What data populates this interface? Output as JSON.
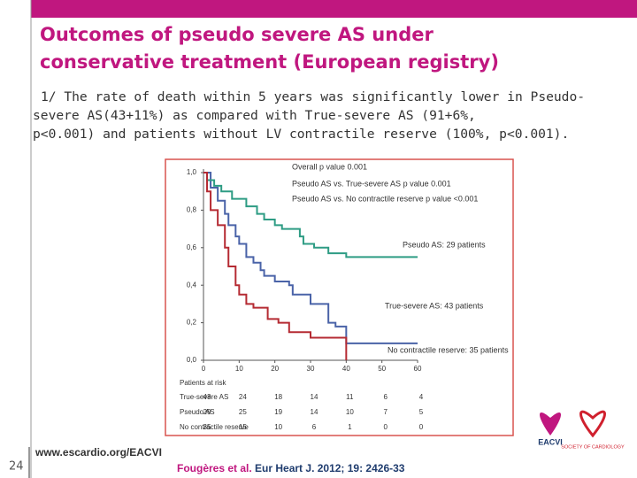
{
  "header": {
    "title_lines": [
      "Outcomes of pseudo severe AS under",
      "conservative treatment (European registry)"
    ]
  },
  "body": {
    "lines": [
      "1/ The rate of death within 5 years was significantly lower in Pseudo-",
      "severe AS(43+11%) as compared with True-severe AS (91+6%,",
      "p<0.001) and patients without LV contractile reserve (100%, p<0.001)."
    ]
  },
  "chart_data": {
    "type": "step",
    "xlim": [
      0,
      60
    ],
    "xticks": [
      0,
      10,
      20,
      30,
      40,
      50,
      60
    ],
    "ylim": [
      0,
      1
    ],
    "yticks": [
      {
        "value": 0,
        "label": "0,0"
      },
      {
        "value": 0.2,
        "label": "0,2"
      },
      {
        "value": 0.4,
        "label": "0,4"
      },
      {
        "value": 0.6,
        "label": "0,6"
      },
      {
        "value": 0.8,
        "label": "0,8"
      },
      {
        "value": 1,
        "label": "1,0"
      }
    ],
    "annotations": [
      "Overall p value 0.001",
      "Pseudo AS vs. True-severe AS    p value 0.001",
      "Pseudo AS vs. No contractile reserve    p value <0.001",
      "Pseudo AS: 29 patients",
      "True-severe AS: 43 patients",
      "No contractile reserve: 35 patients"
    ],
    "risk_title": "Patients at risk",
    "series": [
      {
        "name": "True-severe AS",
        "color": "#4a63a8",
        "x": [
          0,
          2,
          4,
          6,
          7,
          9,
          10,
          12,
          14,
          16,
          17,
          20,
          24,
          25,
          30,
          35,
          37,
          40,
          60
        ],
        "values": [
          1,
          0.92,
          0.85,
          0.78,
          0.72,
          0.66,
          0.62,
          0.55,
          0.52,
          0.48,
          0.45,
          0.42,
          0.4,
          0.35,
          0.3,
          0.2,
          0.18,
          0.09,
          0.09
        ],
        "at_risk": [
          43,
          24,
          18,
          14,
          11,
          6,
          4
        ]
      },
      {
        "name": "Pseudo AS",
        "color": "#2e9c84",
        "x": [
          0,
          1,
          3,
          5,
          8,
          12,
          15,
          17,
          20,
          22,
          27,
          28,
          31,
          35,
          40,
          60
        ],
        "values": [
          1,
          0.96,
          0.93,
          0.9,
          0.86,
          0.82,
          0.78,
          0.75,
          0.72,
          0.7,
          0.66,
          0.62,
          0.6,
          0.57,
          0.55,
          0.55
        ],
        "at_risk": [
          29,
          25,
          19,
          14,
          10,
          7,
          5
        ]
      },
      {
        "name": "No contractile reserve",
        "color": "#b52b33",
        "x": [
          0,
          1,
          2,
          4,
          6,
          7,
          9,
          10,
          12,
          14,
          18,
          21,
          24,
          30,
          40
        ],
        "values": [
          1,
          0.9,
          0.8,
          0.72,
          0.6,
          0.5,
          0.4,
          0.35,
          0.3,
          0.28,
          0.22,
          0.2,
          0.15,
          0.12,
          0
        ],
        "at_risk": [
          35,
          15,
          10,
          6,
          1,
          0,
          0
        ]
      }
    ]
  },
  "footer": {
    "page": "24",
    "url": "www.escardio.org/EACVI",
    "cite_authors": "Fougères et al.",
    "cite_ref": " Eur Heart J. 2012; 19: 2426-33",
    "logo_left": "EACVI",
    "logo_right": "SOCIETY OF CARDIOLOGY"
  }
}
